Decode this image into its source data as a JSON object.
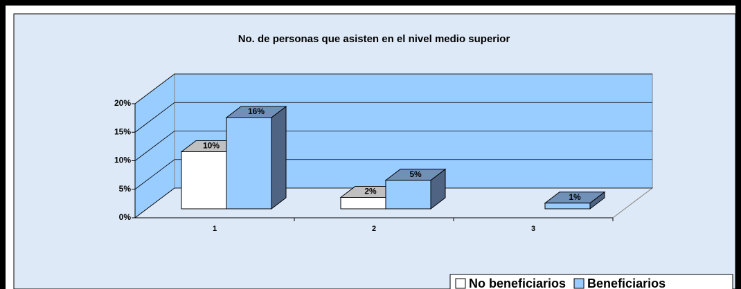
{
  "chart_data": {
    "type": "bar3d",
    "title": "No. de personas que asisten en el nivel medio superior",
    "categories": [
      "1",
      "2",
      "3"
    ],
    "series": [
      {
        "name": "No beneficiarios",
        "color": "#ffffff",
        "values": [
          10,
          2,
          null
        ],
        "value_labels": [
          "10%",
          "2%",
          null
        ]
      },
      {
        "name": "Beneficiarios",
        "color": "#99ccff",
        "values": [
          16,
          5,
          1
        ],
        "value_labels": [
          "16%",
          "5%",
          "1%"
        ]
      }
    ],
    "ylim": [
      0,
      20
    ],
    "yticks": [
      {
        "value": 0,
        "label": "0%"
      },
      {
        "value": 5,
        "label": "5%"
      },
      {
        "value": 10,
        "label": "10%"
      },
      {
        "value": 15,
        "label": "15%"
      },
      {
        "value": 20,
        "label": "20%"
      }
    ],
    "grid": true,
    "legend": "bottom-right"
  }
}
